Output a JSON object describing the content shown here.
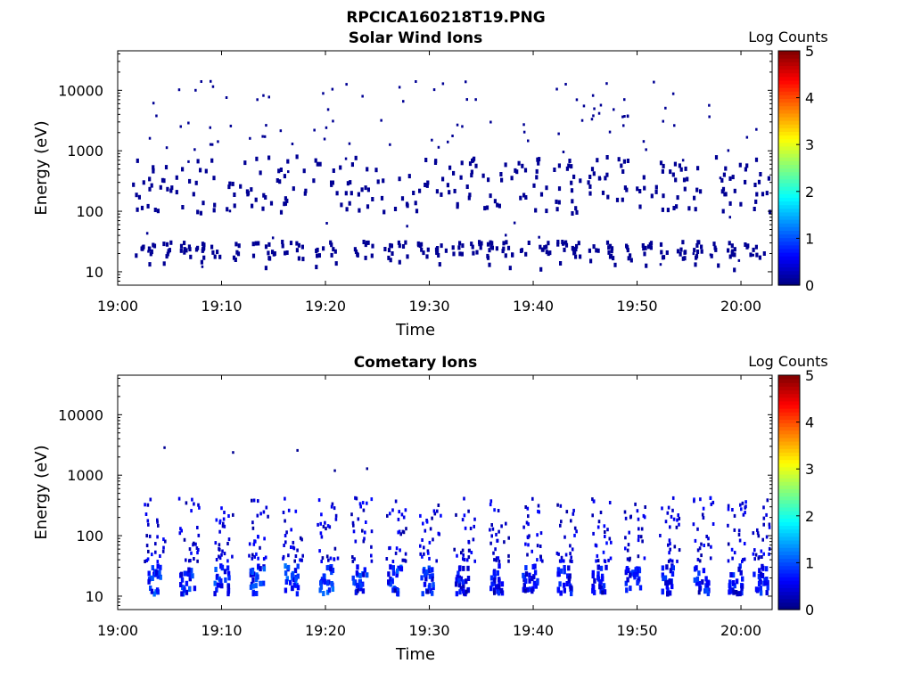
{
  "page_title": "RPCICA160218T19.PNG",
  "chart_data": [
    {
      "type": "heatmap",
      "title": "Solar Wind Ions",
      "xlabel": "Time",
      "ylabel": "Energy (eV)",
      "x_ticks": [
        "19:00",
        "19:10",
        "19:20",
        "19:30",
        "19:40",
        "19:50",
        "20:00"
      ],
      "x_range": [
        "19:00",
        "20:03"
      ],
      "y_scale": "log",
      "y_ticks": [
        10,
        100,
        1000,
        10000
      ],
      "y_range": [
        6,
        45000
      ],
      "colorbar": {
        "label": "Log Counts",
        "range": [
          0,
          5
        ],
        "ticks": [
          0,
          1,
          2,
          3,
          4,
          5
        ],
        "colormap": "jet"
      },
      "grid": false,
      "sweeps_min": [
        2.0,
        3.2,
        4.7,
        6.4,
        7.8,
        9.3,
        11.1,
        13.0,
        14.5,
        16.2,
        17.6,
        19.2,
        20.7,
        22.5,
        24.0,
        26.0,
        27.4,
        29.3,
        31.0,
        32.6,
        34.4,
        35.9,
        37.4,
        39.1,
        41.0,
        42.6,
        44.0,
        45.8,
        47.5,
        49.0,
        50.8,
        52.6,
        54.2,
        55.8,
        57.4,
        59.1,
        60.6,
        61.8
      ],
      "dominant_value": 0.1,
      "description": "sparse single-count events between 10 eV and 20000 eV"
    },
    {
      "type": "heatmap",
      "title": "Cometary Ions",
      "xlabel": "Time",
      "ylabel": "Energy (eV)",
      "x_ticks": [
        "19:00",
        "19:10",
        "19:20",
        "19:30",
        "19:40",
        "19:50",
        "20:00"
      ],
      "x_range": [
        "19:00",
        "20:03"
      ],
      "y_scale": "log",
      "y_ticks": [
        10,
        100,
        1000,
        10000
      ],
      "y_range": [
        6,
        45000
      ],
      "colorbar": {
        "label": "Log Counts",
        "range": [
          0,
          5
        ],
        "ticks": [
          0,
          1,
          2,
          3,
          4,
          5
        ],
        "colormap": "jet"
      },
      "grid": false,
      "bursts": [
        {
          "t_min": 3.3,
          "peak_log_counts": 1.2
        },
        {
          "t_min": 6.6,
          "peak_log_counts": 1.1
        },
        {
          "t_min": 9.9,
          "peak_log_counts": 1.1
        },
        {
          "t_min": 13.3,
          "peak_log_counts": 1.2
        },
        {
          "t_min": 16.6,
          "peak_log_counts": 1.3
        },
        {
          "t_min": 19.9,
          "peak_log_counts": 1.2
        },
        {
          "t_min": 23.2,
          "peak_log_counts": 1.1
        },
        {
          "t_min": 26.5,
          "peak_log_counts": 1.2
        },
        {
          "t_min": 29.8,
          "peak_log_counts": 1.1
        },
        {
          "t_min": 33.1,
          "peak_log_counts": 0.9
        },
        {
          "t_min": 36.4,
          "peak_log_counts": 0.9
        },
        {
          "t_min": 39.6,
          "peak_log_counts": 0.9
        },
        {
          "t_min": 42.9,
          "peak_log_counts": 0.9
        },
        {
          "t_min": 46.2,
          "peak_log_counts": 0.9
        },
        {
          "t_min": 49.5,
          "peak_log_counts": 0.9
        },
        {
          "t_min": 52.8,
          "peak_log_counts": 1.0
        },
        {
          "t_min": 56.1,
          "peak_log_counts": 1.0
        },
        {
          "t_min": 59.3,
          "peak_log_counts": 0.9
        },
        {
          "t_min": 61.8,
          "peak_log_counts": 1.0
        }
      ],
      "energy_bands_eV": {
        "dense_low": [
          12,
          35
        ],
        "upper": [
          40,
          450
        ]
      }
    }
  ]
}
